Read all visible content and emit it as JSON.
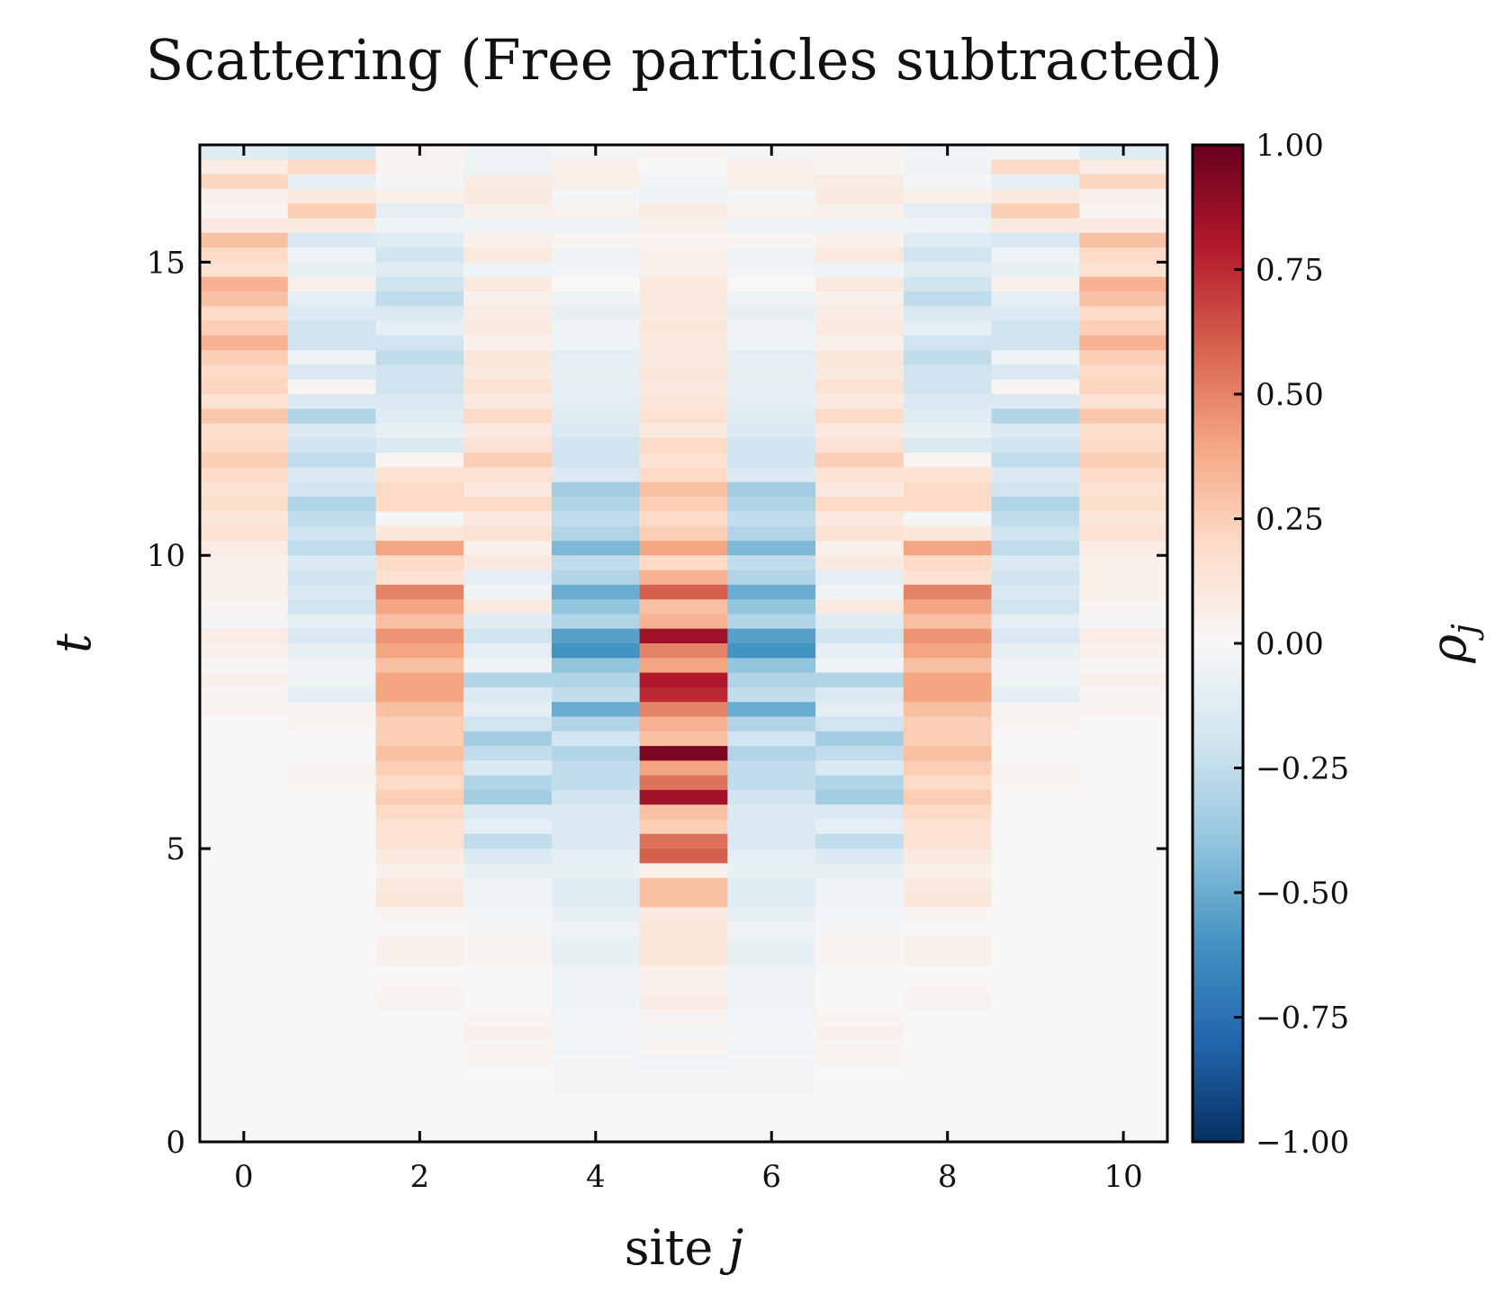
{
  "chart_data": {
    "type": "heatmap",
    "title": "Scattering (Free particles subtracted)",
    "xlabel": "site j",
    "ylabel": "t",
    "colorbar_label": "ρ_j",
    "colormap": "RdBu_r",
    "colors": {
      "neg": "#053061",
      "mid": "#f7f7f7",
      "pos": "#67001f"
    },
    "xlim": [
      -0.5,
      10.5
    ],
    "ylim": [
      0,
      17
    ],
    "vlim": [
      -1.0,
      1.0
    ],
    "xticks": [
      0,
      2,
      4,
      6,
      8,
      10
    ],
    "xtick_labels": [
      "0",
      "2",
      "4",
      "6",
      "8",
      "10"
    ],
    "yticks": [
      0,
      5,
      10,
      15
    ],
    "ytick_labels": [
      "0",
      "5",
      "10",
      "15"
    ],
    "colorbar_ticks": [
      1.0,
      0.75,
      0.5,
      0.25,
      0.0,
      -0.25,
      -0.5,
      -0.75,
      -1.0
    ],
    "colorbar_tick_labels": [
      "1.00",
      "0.75",
      "0.50",
      "0.25",
      "0.00",
      "−0.25",
      "−0.50",
      "−0.75",
      "−1.00"
    ],
    "sites": [
      0,
      1,
      2,
      3,
      4,
      5,
      6,
      7,
      8,
      9,
      10
    ],
    "dt": 0.25,
    "rows_top_down": [
      [
        -0.12,
        -0.18,
        0.03,
        -0.05,
        -0.02,
        0.02,
        -0.02,
        0.03,
        -0.03,
        -0.02,
        -0.12
      ],
      [
        0.08,
        0.2,
        0.02,
        -0.05,
        0.05,
        0.0,
        0.05,
        0.02,
        -0.05,
        0.2,
        0.08
      ],
      [
        0.22,
        -0.1,
        -0.02,
        0.08,
        0.06,
        -0.03,
        0.06,
        0.08,
        -0.02,
        -0.1,
        0.22
      ],
      [
        0.05,
        0.1,
        0.05,
        0.1,
        -0.02,
        -0.05,
        -0.02,
        0.1,
        0.05,
        0.1,
        0.05
      ],
      [
        0.02,
        0.25,
        -0.1,
        0.05,
        0.03,
        0.08,
        0.03,
        0.05,
        -0.1,
        0.25,
        0.02
      ],
      [
        0.1,
        0.1,
        -0.05,
        -0.05,
        -0.05,
        0.05,
        -0.05,
        -0.05,
        -0.05,
        0.1,
        0.1
      ],
      [
        0.3,
        -0.15,
        -0.12,
        0.05,
        0.02,
        0.03,
        0.02,
        0.05,
        -0.12,
        -0.15,
        0.3
      ],
      [
        0.2,
        -0.05,
        -0.2,
        0.1,
        -0.05,
        0.05,
        -0.05,
        0.1,
        -0.2,
        -0.05,
        0.2
      ],
      [
        0.15,
        -0.08,
        -0.12,
        -0.05,
        -0.03,
        0.06,
        -0.03,
        -0.05,
        -0.12,
        -0.08,
        0.15
      ],
      [
        0.35,
        0.05,
        -0.2,
        0.1,
        0.0,
        0.1,
        0.0,
        0.1,
        -0.2,
        0.05,
        0.35
      ],
      [
        0.3,
        -0.1,
        -0.25,
        0.05,
        -0.05,
        0.1,
        -0.05,
        0.05,
        -0.25,
        -0.1,
        0.3
      ],
      [
        0.2,
        -0.15,
        -0.15,
        0.08,
        -0.08,
        0.1,
        -0.08,
        0.08,
        -0.15,
        -0.15,
        0.2
      ],
      [
        0.25,
        -0.2,
        -0.1,
        0.1,
        -0.05,
        0.12,
        -0.05,
        0.1,
        -0.1,
        -0.2,
        0.25
      ],
      [
        0.35,
        -0.2,
        -0.2,
        0.05,
        -0.05,
        0.1,
        -0.05,
        0.05,
        -0.2,
        -0.2,
        0.35
      ],
      [
        0.25,
        -0.05,
        -0.25,
        0.12,
        -0.1,
        0.1,
        -0.1,
        0.12,
        -0.25,
        -0.05,
        0.25
      ],
      [
        0.2,
        -0.15,
        -0.2,
        0.1,
        -0.08,
        0.12,
        -0.08,
        0.1,
        -0.2,
        -0.15,
        0.2
      ],
      [
        0.22,
        0.02,
        -0.2,
        0.15,
        -0.1,
        0.1,
        -0.1,
        0.15,
        -0.2,
        0.02,
        0.22
      ],
      [
        0.15,
        -0.15,
        -0.15,
        0.1,
        -0.1,
        0.12,
        -0.1,
        0.1,
        -0.15,
        -0.15,
        0.15
      ],
      [
        0.28,
        -0.3,
        -0.12,
        0.2,
        -0.12,
        0.15,
        -0.12,
        0.2,
        -0.12,
        -0.3,
        0.28
      ],
      [
        0.18,
        -0.15,
        -0.08,
        0.1,
        -0.15,
        0.1,
        -0.15,
        0.1,
        -0.08,
        -0.15,
        0.18
      ],
      [
        0.2,
        -0.2,
        -0.15,
        0.15,
        -0.2,
        0.2,
        -0.2,
        0.15,
        -0.15,
        -0.2,
        0.2
      ],
      [
        0.25,
        -0.25,
        0.02,
        0.25,
        -0.2,
        0.15,
        -0.2,
        0.25,
        0.02,
        -0.25,
        0.25
      ],
      [
        0.2,
        -0.15,
        0.15,
        0.15,
        -0.15,
        0.2,
        -0.15,
        0.15,
        0.15,
        -0.15,
        0.2
      ],
      [
        0.15,
        -0.2,
        0.2,
        0.1,
        -0.35,
        0.3,
        -0.35,
        0.1,
        0.2,
        -0.2,
        0.15
      ],
      [
        0.18,
        -0.3,
        0.2,
        0.2,
        -0.3,
        0.25,
        -0.3,
        0.2,
        0.2,
        -0.3,
        0.18
      ],
      [
        0.12,
        -0.25,
        -0.02,
        0.1,
        -0.25,
        0.2,
        -0.25,
        0.1,
        -0.02,
        -0.25,
        0.12
      ],
      [
        0.15,
        -0.2,
        0.12,
        0.15,
        -0.3,
        0.25,
        -0.3,
        0.15,
        0.12,
        -0.2,
        0.15
      ],
      [
        0.08,
        -0.25,
        0.4,
        0.05,
        -0.45,
        0.4,
        -0.45,
        0.05,
        0.4,
        -0.25,
        0.08
      ],
      [
        0.05,
        -0.15,
        0.2,
        0.1,
        -0.25,
        0.2,
        -0.25,
        0.1,
        0.2,
        -0.15,
        0.05
      ],
      [
        0.05,
        -0.2,
        0.15,
        -0.1,
        -0.3,
        0.35,
        -0.3,
        -0.1,
        0.15,
        -0.2,
        0.05
      ],
      [
        0.05,
        -0.15,
        0.5,
        -0.05,
        -0.5,
        0.6,
        -0.5,
        -0.05,
        0.5,
        -0.15,
        0.05
      ],
      [
        0.02,
        -0.2,
        0.4,
        0.1,
        -0.4,
        0.3,
        -0.4,
        0.1,
        0.4,
        -0.2,
        0.02
      ],
      [
        -0.02,
        -0.1,
        0.3,
        -0.12,
        -0.3,
        0.35,
        -0.3,
        -0.12,
        0.3,
        -0.1,
        -0.02
      ],
      [
        0.08,
        -0.15,
        0.45,
        -0.2,
        -0.55,
        0.85,
        -0.55,
        -0.2,
        0.45,
        -0.15,
        0.08
      ],
      [
        0.05,
        -0.08,
        0.4,
        -0.1,
        -0.6,
        0.5,
        -0.6,
        -0.1,
        0.4,
        -0.08,
        0.05
      ],
      [
        0.02,
        -0.05,
        0.3,
        -0.05,
        -0.4,
        0.4,
        -0.4,
        -0.05,
        0.3,
        -0.05,
        0.02
      ],
      [
        0.05,
        -0.05,
        0.4,
        -0.3,
        -0.3,
        0.8,
        -0.3,
        -0.3,
        0.4,
        -0.05,
        0.05
      ],
      [
        0.03,
        -0.1,
        0.4,
        -0.15,
        -0.25,
        0.75,
        -0.25,
        -0.15,
        0.4,
        -0.1,
        0.03
      ],
      [
        0.03,
        0.02,
        0.3,
        -0.1,
        -0.5,
        0.5,
        -0.5,
        -0.1,
        0.3,
        0.02,
        0.03
      ],
      [
        0.0,
        0.02,
        0.25,
        -0.2,
        -0.3,
        0.35,
        -0.3,
        -0.2,
        0.25,
        0.02,
        0.0
      ],
      [
        0.0,
        0.0,
        0.25,
        -0.35,
        -0.2,
        0.3,
        -0.2,
        -0.35,
        0.25,
        0.0,
        0.0
      ],
      [
        0.0,
        0.0,
        0.3,
        -0.25,
        -0.3,
        0.95,
        -0.3,
        -0.25,
        0.3,
        0.0,
        0.0
      ],
      [
        0.0,
        0.02,
        0.25,
        -0.15,
        -0.25,
        0.4,
        -0.25,
        -0.15,
        0.25,
        0.02,
        0.0
      ],
      [
        0.0,
        0.02,
        0.2,
        -0.3,
        -0.25,
        0.55,
        -0.25,
        -0.3,
        0.2,
        0.02,
        0.0
      ],
      [
        0.0,
        0.0,
        0.25,
        -0.35,
        -0.2,
        0.85,
        -0.2,
        -0.35,
        0.25,
        0.0,
        0.0
      ],
      [
        0.0,
        0.0,
        0.2,
        -0.15,
        -0.15,
        0.3,
        -0.15,
        -0.15,
        0.2,
        0.0,
        0.0
      ],
      [
        0.0,
        0.0,
        0.15,
        -0.1,
        -0.15,
        0.25,
        -0.15,
        -0.1,
        0.15,
        0.0,
        0.0
      ],
      [
        0.0,
        0.0,
        0.15,
        -0.25,
        -0.15,
        0.55,
        -0.15,
        -0.25,
        0.15,
        0.0,
        0.0
      ],
      [
        0.0,
        0.0,
        0.1,
        -0.15,
        -0.1,
        0.6,
        -0.1,
        -0.15,
        0.1,
        0.0,
        0.0
      ],
      [
        0.0,
        0.0,
        0.05,
        -0.08,
        -0.08,
        0.05,
        -0.08,
        -0.08,
        0.05,
        0.0,
        0.0
      ],
      [
        0.0,
        0.0,
        0.1,
        -0.05,
        -0.12,
        0.3,
        -0.12,
        -0.05,
        0.1,
        0.0,
        0.0
      ],
      [
        0.0,
        0.0,
        0.12,
        -0.05,
        -0.12,
        0.3,
        -0.12,
        -0.05,
        0.12,
        0.0,
        0.0
      ],
      [
        0.0,
        0.0,
        0.02,
        -0.03,
        -0.08,
        0.1,
        -0.08,
        -0.03,
        0.02,
        0.0,
        0.0
      ],
      [
        0.0,
        0.0,
        0.0,
        -0.02,
        -0.05,
        0.12,
        -0.05,
        -0.02,
        0.0,
        0.0,
        0.0
      ],
      [
        0.0,
        0.0,
        0.05,
        0.02,
        -0.08,
        0.12,
        -0.08,
        0.02,
        0.05,
        0.0,
        0.0
      ],
      [
        0.0,
        0.0,
        0.05,
        0.02,
        -0.08,
        0.12,
        -0.08,
        0.02,
        0.05,
        0.0,
        0.0
      ],
      [
        0.0,
        0.0,
        0.0,
        0.0,
        -0.05,
        0.05,
        -0.05,
        0.0,
        0.0,
        0.0,
        0.0
      ],
      [
        0.0,
        0.0,
        0.02,
        0.0,
        -0.05,
        0.05,
        -0.05,
        0.0,
        0.02,
        0.0,
        0.0
      ],
      [
        0.0,
        0.0,
        0.03,
        0.0,
        -0.05,
        0.08,
        -0.05,
        0.0,
        0.03,
        0.0,
        0.0
      ],
      [
        0.0,
        0.0,
        0.0,
        0.02,
        -0.03,
        0.03,
        -0.03,
        0.02,
        0.0,
        0.0,
        0.0
      ],
      [
        0.0,
        0.0,
        0.0,
        0.05,
        -0.02,
        -0.02,
        -0.02,
        0.05,
        0.0,
        0.0,
        0.0
      ],
      [
        0.0,
        0.0,
        0.0,
        0.02,
        -0.03,
        0.02,
        -0.03,
        0.02,
        0.0,
        0.0,
        0.0
      ],
      [
        0.0,
        0.0,
        0.0,
        0.02,
        -0.02,
        -0.03,
        -0.02,
        0.02,
        0.0,
        0.0,
        0.0
      ],
      [
        0.0,
        0.0,
        0.0,
        0.0,
        -0.02,
        -0.02,
        -0.02,
        0.0,
        0.0,
        0.0,
        0.0
      ],
      [
        0.0,
        0.0,
        0.0,
        0.0,
        -0.02,
        -0.02,
        -0.02,
        0.0,
        0.0,
        0.0,
        0.0
      ],
      [
        0.0,
        0.0,
        0.0,
        0.0,
        -0.01,
        -0.01,
        -0.01,
        0.0,
        0.0,
        0.0,
        0.0
      ],
      [
        0.0,
        0.0,
        0.0,
        0.0,
        0.0,
        0.0,
        0.0,
        0.0,
        0.0,
        0.0,
        0.0
      ],
      [
        0.0,
        0.0,
        0.0,
        0.0,
        0.0,
        0.0,
        0.0,
        0.0,
        0.0,
        0.0,
        0.0
      ]
    ]
  }
}
